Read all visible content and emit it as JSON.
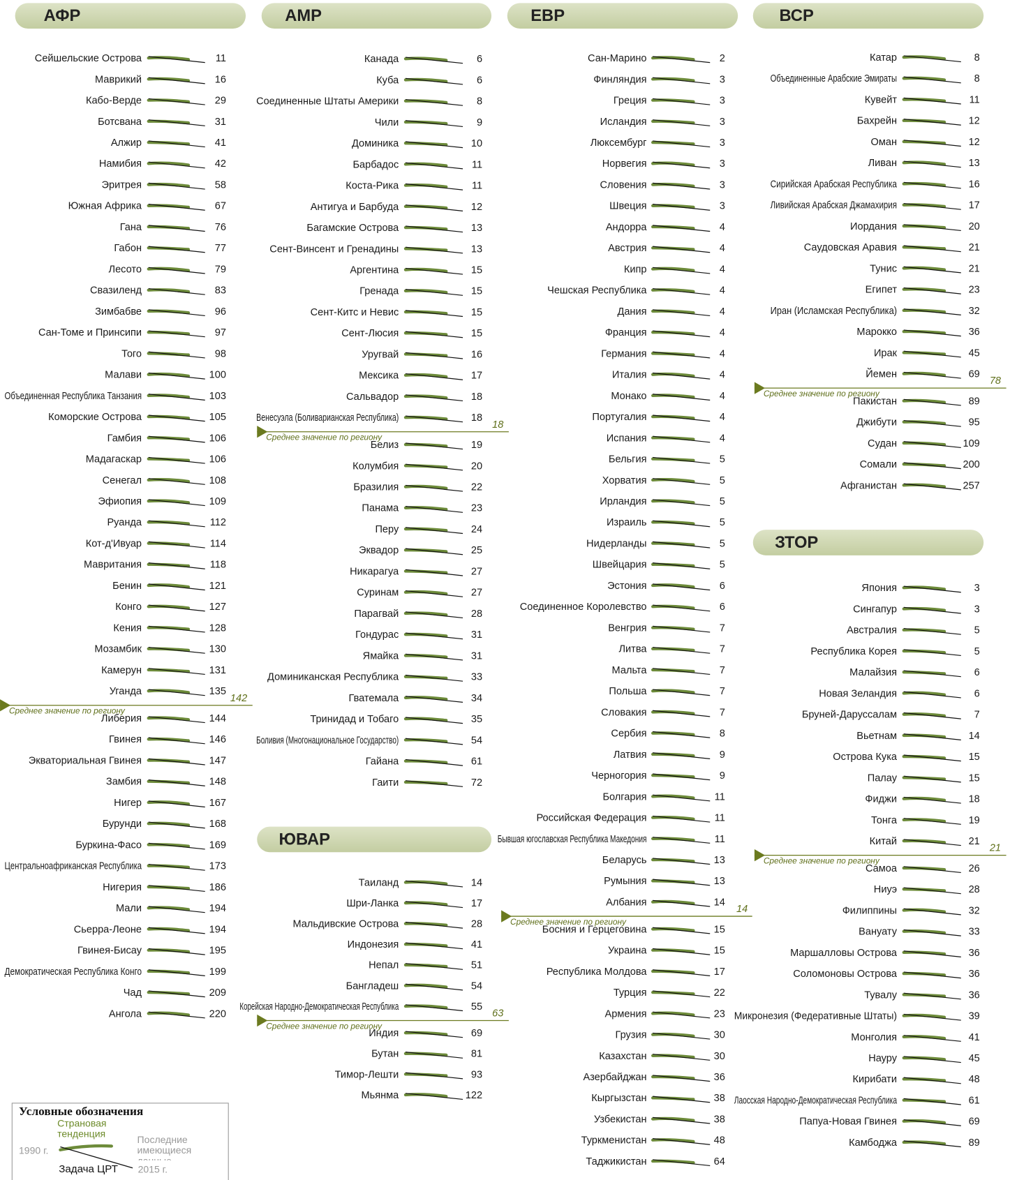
{
  "average_label": "Среднее значение по региону",
  "regions": [
    {
      "name": "АФР",
      "above_average": [
        {
          "name": "Сейшельские Острова",
          "value": 11
        },
        {
          "name": "Маврикий",
          "value": 16
        },
        {
          "name": "Кабо-Верде",
          "value": 29
        },
        {
          "name": "Ботсвана",
          "value": 31
        },
        {
          "name": "Алжир",
          "value": 41
        },
        {
          "name": "Намибия",
          "value": 42
        },
        {
          "name": "Эритрея",
          "value": 58
        },
        {
          "name": "Южная Африка",
          "value": 67
        },
        {
          "name": "Гана",
          "value": 76
        },
        {
          "name": "Габон",
          "value": 77
        },
        {
          "name": "Лесото",
          "value": 79
        },
        {
          "name": "Свазиленд",
          "value": 83
        },
        {
          "name": "Зимбабве",
          "value": 96
        },
        {
          "name": "Сан-Томе и Принсипи",
          "value": 97
        },
        {
          "name": "Того",
          "value": 98
        },
        {
          "name": "Малави",
          "value": 100
        },
        {
          "name": "Объединенная Республика Танзания",
          "value": 103
        },
        {
          "name": "Коморские Острова",
          "value": 105
        },
        {
          "name": "Гамбия",
          "value": 106
        },
        {
          "name": "Мадагаскар",
          "value": 106
        },
        {
          "name": "Сенегал",
          "value": 108
        },
        {
          "name": "Эфиопия",
          "value": 109
        },
        {
          "name": "Руанда",
          "value": 112
        },
        {
          "name": "Кот-д'Ивуар",
          "value": 114
        },
        {
          "name": "Мавритания",
          "value": 118
        },
        {
          "name": "Бенин",
          "value": 121
        },
        {
          "name": "Конго",
          "value": 127
        },
        {
          "name": "Кения",
          "value": 128
        },
        {
          "name": "Мозамбик",
          "value": 130
        },
        {
          "name": "Камерун",
          "value": 131
        },
        {
          "name": "Уганда",
          "value": 135
        }
      ],
      "average": 142,
      "below_average": [
        {
          "name": "Либерия",
          "value": 144
        },
        {
          "name": "Гвинея",
          "value": 146
        },
        {
          "name": "Экваториальная Гвинея",
          "value": 147
        },
        {
          "name": "Замбия",
          "value": 148
        },
        {
          "name": "Нигер",
          "value": 167
        },
        {
          "name": "Бурунди",
          "value": 168
        },
        {
          "name": "Буркина-Фасо",
          "value": 169
        },
        {
          "name": "Центральноафриканская Республика",
          "value": 173
        },
        {
          "name": "Нигерия",
          "value": 186
        },
        {
          "name": "Мали",
          "value": 194
        },
        {
          "name": "Сьерра-Леоне",
          "value": 194
        },
        {
          "name": "Гвинея-Бисау",
          "value": 195
        },
        {
          "name": "Демократическая Республика Конго",
          "value": 199
        },
        {
          "name": "Чад",
          "value": 209
        },
        {
          "name": "Ангола",
          "value": 220
        }
      ]
    },
    {
      "name": "АМР",
      "above_average": [
        {
          "name": "Канада",
          "value": 6
        },
        {
          "name": "Куба",
          "value": 6
        },
        {
          "name": "Соединенные Штаты Америки",
          "value": 8
        },
        {
          "name": "Чили",
          "value": 9
        },
        {
          "name": "Доминика",
          "value": 10
        },
        {
          "name": "Барбадос",
          "value": 11
        },
        {
          "name": "Коста-Рика",
          "value": 11
        },
        {
          "name": "Антигуа и Барбуда",
          "value": 12
        },
        {
          "name": "Багамские Острова",
          "value": 13
        },
        {
          "name": "Сент-Винсент и Гренадины",
          "value": 13
        },
        {
          "name": "Аргентина",
          "value": 15
        },
        {
          "name": "Гренада",
          "value": 15
        },
        {
          "name": "Сент-Китс и Невис",
          "value": 15
        },
        {
          "name": "Сент-Люсия",
          "value": 15
        },
        {
          "name": "Уругвай",
          "value": 16
        },
        {
          "name": "Мексика",
          "value": 17
        },
        {
          "name": "Сальвадор",
          "value": 18
        },
        {
          "name": "Венесуэла (Боливарианская Республика)",
          "value": 18
        }
      ],
      "average": 18,
      "below_average": [
        {
          "name": "Белиз",
          "value": 19
        },
        {
          "name": "Колумбия",
          "value": 20
        },
        {
          "name": "Бразилия",
          "value": 22
        },
        {
          "name": "Панама",
          "value": 23
        },
        {
          "name": "Перу",
          "value": 24
        },
        {
          "name": "Эквадор",
          "value": 25
        },
        {
          "name": "Никарагуа",
          "value": 27
        },
        {
          "name": "Суринам",
          "value": 27
        },
        {
          "name": "Парагвай",
          "value": 28
        },
        {
          "name": "Гондурас",
          "value": 31
        },
        {
          "name": "Ямайка",
          "value": 31
        },
        {
          "name": "Доминиканская Республика",
          "value": 33
        },
        {
          "name": "Гватемала",
          "value": 34
        },
        {
          "name": "Тринидад и Тобаго",
          "value": 35
        },
        {
          "name": "Боливия (Многонациональное Государство)",
          "value": 54
        },
        {
          "name": "Гайана",
          "value": 61
        },
        {
          "name": "Гаити",
          "value": 72
        }
      ]
    },
    {
      "name": "ЕВР",
      "above_average": [
        {
          "name": "Сан-Марино",
          "value": 2
        },
        {
          "name": "Финляндия",
          "value": 3
        },
        {
          "name": "Греция",
          "value": 3
        },
        {
          "name": "Исландия",
          "value": 3
        },
        {
          "name": "Люксембург",
          "value": 3
        },
        {
          "name": "Норвегия",
          "value": 3
        },
        {
          "name": "Словения",
          "value": 3
        },
        {
          "name": "Швеция",
          "value": 3
        },
        {
          "name": "Андорра",
          "value": 4
        },
        {
          "name": "Австрия",
          "value": 4
        },
        {
          "name": "Кипр",
          "value": 4
        },
        {
          "name": "Чешская Республика",
          "value": 4
        },
        {
          "name": "Дания",
          "value": 4
        },
        {
          "name": "Франция",
          "value": 4
        },
        {
          "name": "Германия",
          "value": 4
        },
        {
          "name": "Италия",
          "value": 4
        },
        {
          "name": "Монако",
          "value": 4
        },
        {
          "name": "Португалия",
          "value": 4
        },
        {
          "name": "Испания",
          "value": 4
        },
        {
          "name": "Бельгия",
          "value": 5
        },
        {
          "name": "Хорватия",
          "value": 5
        },
        {
          "name": "Ирландия",
          "value": 5
        },
        {
          "name": "Израиль",
          "value": 5
        },
        {
          "name": "Нидерланды",
          "value": 5
        },
        {
          "name": "Швейцария",
          "value": 5
        },
        {
          "name": "Эстония",
          "value": 6
        },
        {
          "name": "Соединенное Королевство",
          "value": 6
        },
        {
          "name": "Венгрия",
          "value": 7
        },
        {
          "name": "Литва",
          "value": 7
        },
        {
          "name": "Мальта",
          "value": 7
        },
        {
          "name": "Польша",
          "value": 7
        },
        {
          "name": "Словакия",
          "value": 7
        },
        {
          "name": "Сербия",
          "value": 8
        },
        {
          "name": "Латвия",
          "value": 9
        },
        {
          "name": "Черногория",
          "value": 9
        },
        {
          "name": "Болгария",
          "value": 11
        },
        {
          "name": "Российская Федерация",
          "value": 11
        },
        {
          "name": "Бывшая югославская Республика Македония",
          "value": 11
        },
        {
          "name": "Беларусь",
          "value": 13
        },
        {
          "name": "Румыния",
          "value": 13
        },
        {
          "name": "Албания",
          "value": 14
        }
      ],
      "average": 14,
      "below_average": [
        {
          "name": "Босния и Герцеговина",
          "value": 15
        },
        {
          "name": "Украина",
          "value": 15
        },
        {
          "name": "Республика Молдова",
          "value": 17
        },
        {
          "name": "Турция",
          "value": 22
        },
        {
          "name": "Армения",
          "value": 23
        },
        {
          "name": "Грузия",
          "value": 30
        },
        {
          "name": "Казахстан",
          "value": 30
        },
        {
          "name": "Азербайджан",
          "value": 36
        },
        {
          "name": "Кыргызстан",
          "value": 38
        },
        {
          "name": "Узбекистан",
          "value": 38
        },
        {
          "name": "Туркменистан",
          "value": 48
        },
        {
          "name": "Таджикистан",
          "value": 64
        }
      ]
    },
    {
      "name": "ВСР",
      "above_average": [
        {
          "name": "Катар",
          "value": 8
        },
        {
          "name": "Объединенные Арабские Эмираты",
          "value": 8
        },
        {
          "name": "Кувейт",
          "value": 11
        },
        {
          "name": "Бахрейн",
          "value": 12
        },
        {
          "name": "Оман",
          "value": 12
        },
        {
          "name": "Ливан",
          "value": 13
        },
        {
          "name": "Сирийская Арабская Республика",
          "value": 16
        },
        {
          "name": "Ливийская Арабская Джамахирия",
          "value": 17
        },
        {
          "name": "Иордания",
          "value": 20
        },
        {
          "name": "Саудовская Аравия",
          "value": 21
        },
        {
          "name": "Тунис",
          "value": 21
        },
        {
          "name": "Египет",
          "value": 23
        },
        {
          "name": "Иран (Исламская Республика)",
          "value": 32
        },
        {
          "name": "Марокко",
          "value": 36
        },
        {
          "name": "Ирак",
          "value": 45
        },
        {
          "name": "Йемен",
          "value": 69
        }
      ],
      "average": 78,
      "below_average": [
        {
          "name": "Пакистан",
          "value": 89
        },
        {
          "name": "Джибути",
          "value": 95
        },
        {
          "name": "Судан",
          "value": 109
        },
        {
          "name": "Сомали",
          "value": 200
        },
        {
          "name": "Афганистан",
          "value": 257
        }
      ]
    },
    {
      "name": "ЮВАР",
      "above_average": [
        {
          "name": "Таиланд",
          "value": 14
        },
        {
          "name": "Шри-Ланка",
          "value": 17
        },
        {
          "name": "Мальдивские Острова",
          "value": 28
        },
        {
          "name": "Индонезия",
          "value": 41
        },
        {
          "name": "Непал",
          "value": 51
        },
        {
          "name": "Бангладеш",
          "value": 54
        },
        {
          "name": "Корейская Народно-Демократическая Республика",
          "value": 55
        }
      ],
      "average": 63,
      "below_average": [
        {
          "name": "Индия",
          "value": 69
        },
        {
          "name": "Бутан",
          "value": 81
        },
        {
          "name": "Тимор-Лешти",
          "value": 93
        },
        {
          "name": "Мьянма",
          "value": 122
        }
      ]
    },
    {
      "name": "ЗТОР",
      "above_average": [
        {
          "name": "Япония",
          "value": 3
        },
        {
          "name": "Сингапур",
          "value": 3
        },
        {
          "name": "Австралия",
          "value": 5
        },
        {
          "name": "Республика Корея",
          "value": 5
        },
        {
          "name": "Малайзия",
          "value": 6
        },
        {
          "name": "Новая Зеландия",
          "value": 6
        },
        {
          "name": "Бруней-Даруссалам",
          "value": 7
        },
        {
          "name": "Вьетнам",
          "value": 14
        },
        {
          "name": "Острова Кука",
          "value": 15
        },
        {
          "name": "Палау",
          "value": 15
        },
        {
          "name": "Фиджи",
          "value": 18
        },
        {
          "name": "Тонга",
          "value": 19
        },
        {
          "name": "Китай",
          "value": 21
        }
      ],
      "average": 21,
      "below_average": [
        {
          "name": "Самоа",
          "value": 26
        },
        {
          "name": "Ниуэ",
          "value": 28
        },
        {
          "name": "Филиппины",
          "value": 32
        },
        {
          "name": "Вануату",
          "value": 33
        },
        {
          "name": "Маршалловы Острова",
          "value": 36
        },
        {
          "name": "Соломоновы Острова",
          "value": 36
        },
        {
          "name": "Тувалу",
          "value": 36
        },
        {
          "name": "Микронезия (Федеративные Штаты)",
          "value": 39
        },
        {
          "name": "Монголия",
          "value": 41
        },
        {
          "name": "Науру",
          "value": 45
        },
        {
          "name": "Кирибати",
          "value": 48
        },
        {
          "name": "Лаосская Народно-Демократическая Республика",
          "value": 61
        },
        {
          "name": "Папуа-Новая Гвинея",
          "value": 69
        },
        {
          "name": "Камбоджа",
          "value": 89
        }
      ]
    }
  ],
  "legend": {
    "title": "Условные обозначения",
    "trend": "Страновая тенденция",
    "start": "1990 г.",
    "latest": "Последние имеющиеся данные",
    "end": "2015 г.",
    "target": "Задача ЦРТ"
  }
}
